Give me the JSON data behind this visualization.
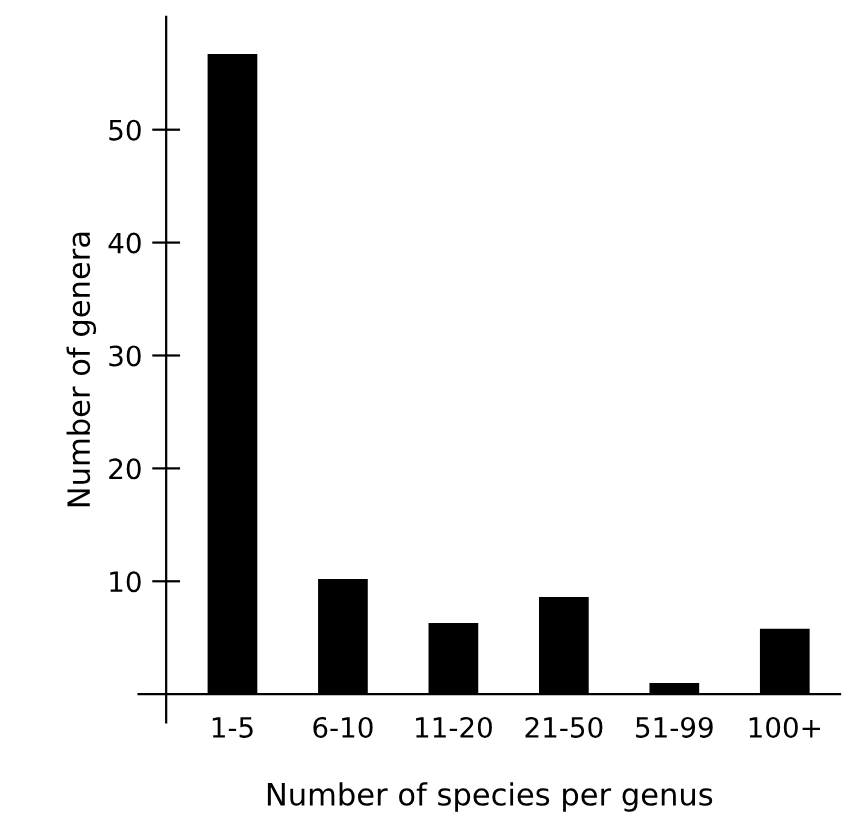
{
  "chart_data": {
    "type": "bar",
    "xlabel": "Number of species per genus",
    "ylabel": "Number of genera",
    "categories": [
      "1-5",
      "6-10",
      "11-20",
      "21-50",
      "51-99",
      "100+"
    ],
    "values": [
      56.7,
      10.2,
      6.3,
      8.6,
      1,
      5.8
    ],
    "color": "#000000",
    "ylim": [
      -2.5,
      60
    ],
    "yticks": [
      10,
      20,
      30,
      40,
      50
    ],
    "grid": false,
    "legend": false
  }
}
